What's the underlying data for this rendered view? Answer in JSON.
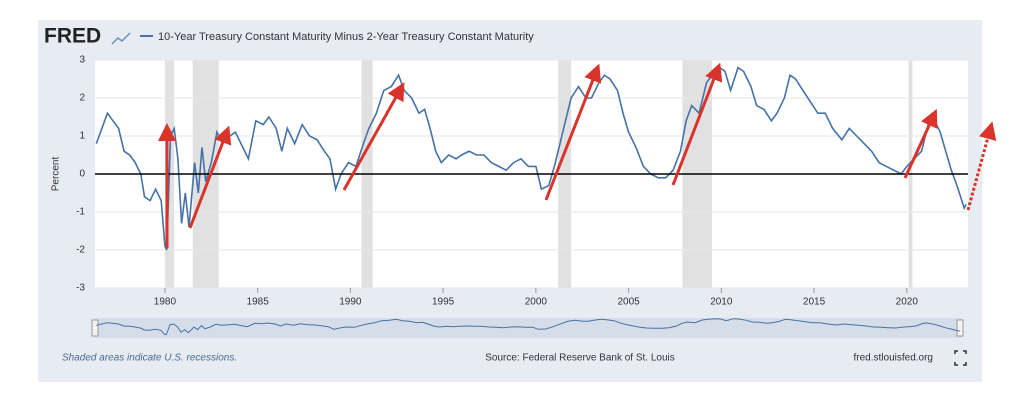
{
  "chart_data": {
    "type": "line",
    "logo": "FRED",
    "y_label": "Percent",
    "note": "Shaded areas indicate U.S. recessions.",
    "source": "Source: Federal Reserve Bank of St. Louis",
    "url": "fred.stlouisfed.org",
    "xlim": [
      1976.23,
      2023.3
    ],
    "xticks": [
      1980,
      1985,
      1990,
      1995,
      2000,
      2005,
      2010,
      2015,
      2020
    ],
    "ylim": [
      -3,
      3
    ],
    "yticks": [
      -3,
      -2,
      -1,
      0,
      1,
      2,
      3
    ],
    "recessions": [
      [
        1980.0,
        1980.5
      ],
      [
        1981.5,
        1982.9
      ],
      [
        1990.6,
        1991.2
      ],
      [
        2001.2,
        2001.9
      ],
      [
        2007.9,
        2009.5
      ],
      [
        2020.1,
        2020.3
      ]
    ],
    "x": [
      1976.3,
      1976.6,
      1976.9,
      1977.2,
      1977.5,
      1977.8,
      1978.1,
      1978.4,
      1978.7,
      1978.9,
      1979.2,
      1979.5,
      1979.8,
      1980.0,
      1980.1,
      1980.3,
      1980.5,
      1980.7,
      1980.9,
      1981.1,
      1981.3,
      1981.6,
      1981.8,
      1982.0,
      1982.2,
      1982.5,
      1982.8,
      1983.1,
      1983.5,
      1983.8,
      1984.2,
      1984.5,
      1984.9,
      1985.3,
      1985.6,
      1986.0,
      1986.3,
      1986.6,
      1987.0,
      1987.4,
      1987.8,
      1988.2,
      1988.6,
      1988.9,
      1989.2,
      1989.5,
      1989.9,
      1990.3,
      1990.7,
      1991.0,
      1991.4,
      1991.8,
      1992.2,
      1992.6,
      1992.9,
      1993.3,
      1993.7,
      1994.0,
      1994.3,
      1994.6,
      1994.9,
      1995.3,
      1995.7,
      1996.0,
      1996.4,
      1996.8,
      1997.2,
      1997.6,
      1998.0,
      1998.4,
      1998.8,
      1999.2,
      1999.6,
      2000.0,
      2000.3,
      2000.7,
      2001.0,
      2001.3,
      2001.6,
      2001.9,
      2002.3,
      2002.7,
      2003.0,
      2003.4,
      2003.7,
      2004.0,
      2004.4,
      2004.7,
      2005.0,
      2005.4,
      2005.8,
      2006.2,
      2006.6,
      2007.0,
      2007.4,
      2007.8,
      2008.1,
      2008.4,
      2008.8,
      2009.2,
      2009.5,
      2009.9,
      2010.2,
      2010.5,
      2010.9,
      2011.2,
      2011.6,
      2011.9,
      2012.3,
      2012.7,
      2013.0,
      2013.4,
      2013.7,
      2014.0,
      2014.4,
      2014.8,
      2015.2,
      2015.6,
      2016.0,
      2016.5,
      2016.9,
      2017.3,
      2017.7,
      2018.1,
      2018.5,
      2018.9,
      2019.3,
      2019.7,
      2020.0,
      2020.4,
      2020.8,
      2021.2,
      2021.4,
      2021.8,
      2022.1,
      2022.4,
      2022.7,
      2022.9,
      2023.1,
      2023.2
    ],
    "series": [
      {
        "name": "10-Year Treasury Constant Maturity Minus 2-Year Treasury Constant Maturity",
        "color": "#4572a7",
        "values": [
          0.8,
          1.2,
          1.6,
          1.4,
          1.2,
          0.6,
          0.5,
          0.3,
          0.0,
          -0.6,
          -0.7,
          -0.4,
          -0.7,
          -1.9,
          -2.0,
          1.0,
          1.2,
          0.4,
          -1.3,
          -0.5,
          -1.4,
          0.3,
          -0.5,
          0.7,
          -0.2,
          0.3,
          1.1,
          0.8,
          1.0,
          1.1,
          0.7,
          0.4,
          1.4,
          1.3,
          1.5,
          1.2,
          0.6,
          1.2,
          0.8,
          1.3,
          1.0,
          0.9,
          0.6,
          0.4,
          -0.4,
          0.0,
          0.3,
          0.2,
          0.8,
          1.2,
          1.6,
          2.2,
          2.3,
          2.6,
          2.2,
          2.0,
          1.6,
          1.7,
          1.2,
          0.6,
          0.3,
          0.5,
          0.4,
          0.5,
          0.6,
          0.5,
          0.5,
          0.3,
          0.2,
          0.1,
          0.3,
          0.4,
          0.2,
          0.2,
          -0.4,
          -0.3,
          0.2,
          0.8,
          1.4,
          2.0,
          2.3,
          2.0,
          2.0,
          2.4,
          2.6,
          2.5,
          2.2,
          1.6,
          1.1,
          0.7,
          0.2,
          0.0,
          -0.1,
          -0.1,
          0.1,
          0.6,
          1.4,
          1.8,
          1.6,
          2.4,
          2.6,
          2.8,
          2.7,
          2.2,
          2.8,
          2.7,
          2.3,
          1.8,
          1.7,
          1.4,
          1.6,
          2.0,
          2.6,
          2.5,
          2.2,
          1.9,
          1.6,
          1.6,
          1.2,
          0.9,
          1.2,
          1.0,
          0.8,
          0.6,
          0.3,
          0.2,
          0.1,
          0.0,
          0.2,
          0.4,
          0.6,
          1.4,
          1.5,
          1.1,
          0.6,
          0.1,
          -0.3,
          -0.6,
          -0.9,
          -0.8
        ]
      }
    ]
  }
}
